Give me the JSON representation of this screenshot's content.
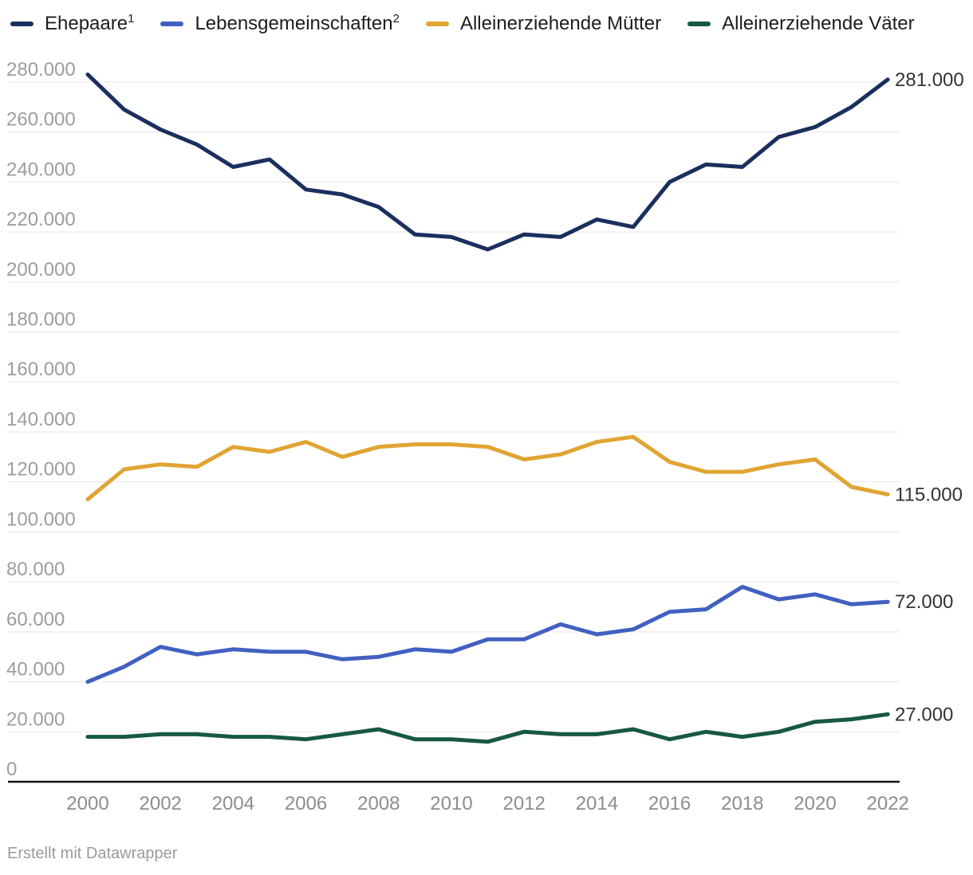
{
  "legend": {
    "items": [
      {
        "label": "Ehepaare",
        "sup": "1"
      },
      {
        "label": "Lebensgemeinschaften",
        "sup": "2"
      },
      {
        "label": "Alleinerziehende Mütter",
        "sup": ""
      },
      {
        "label": "Alleinerziehende Väter",
        "sup": ""
      }
    ]
  },
  "footer": {
    "credit": "Erstellt mit Datawrapper"
  },
  "chart_data": {
    "type": "line",
    "x": [
      2000,
      2001,
      2002,
      2003,
      2004,
      2005,
      2006,
      2007,
      2008,
      2009,
      2010,
      2011,
      2012,
      2013,
      2014,
      2015,
      2016,
      2017,
      2018,
      2019,
      2020,
      2021,
      2022
    ],
    "x_tick_labels": [
      "2000",
      "2002",
      "2004",
      "2006",
      "2008",
      "2010",
      "2012",
      "2014",
      "2016",
      "2018",
      "2020",
      "2022"
    ],
    "y_ticks": {
      "values": [
        280000,
        260000,
        240000,
        220000,
        200000,
        180000,
        160000,
        140000,
        120000,
        100000,
        80000,
        60000,
        40000,
        20000,
        0
      ],
      "labels": [
        "280.000",
        "260.000",
        "240.000",
        "220.000",
        "200.000",
        "180.000",
        "160.000",
        "140.000",
        "120.000",
        "100.000",
        "80.000",
        "60.000",
        "40.000",
        "20.000",
        "0"
      ]
    },
    "ylim": [
      0,
      287000
    ],
    "grid": "horizontal",
    "legend_position": "top",
    "series": [
      {
        "name": "Ehepaare",
        "color": "#1b2f5e",
        "end_label": "281.000",
        "values": [
          283000,
          269000,
          261000,
          255000,
          246000,
          249000,
          237000,
          235000,
          230000,
          219000,
          218000,
          213000,
          219000,
          218000,
          225000,
          222000,
          240000,
          247000,
          246000,
          258000,
          262000,
          270000,
          281000
        ]
      },
      {
        "name": "Lebensgemeinschaften",
        "color": "#4160c0",
        "end_label": "72.000",
        "values": [
          40000,
          46000,
          54000,
          51000,
          53000,
          52000,
          52000,
          49000,
          50000,
          53000,
          52000,
          57000,
          57000,
          63000,
          59000,
          61000,
          68000,
          69000,
          78000,
          73000,
          75000,
          71000,
          72000
        ]
      },
      {
        "name": "Alleinerziehende Mütter",
        "color": "#e1a433",
        "end_label": "115.000",
        "values": [
          113000,
          125000,
          127000,
          126000,
          134000,
          132000,
          136000,
          130000,
          134000,
          135000,
          135000,
          134000,
          129000,
          131000,
          136000,
          138000,
          128000,
          124000,
          124000,
          127000,
          129000,
          118000,
          115000
        ]
      },
      {
        "name": "Alleinerziehende Väter",
        "color": "#175940",
        "end_label": "27.000",
        "values": [
          18000,
          18000,
          19000,
          19000,
          18000,
          18000,
          17000,
          19000,
          21000,
          17000,
          17000,
          16000,
          20000,
          19000,
          19000,
          21000,
          17000,
          20000,
          18000,
          20000,
          24000,
          25000,
          27000
        ]
      }
    ]
  }
}
